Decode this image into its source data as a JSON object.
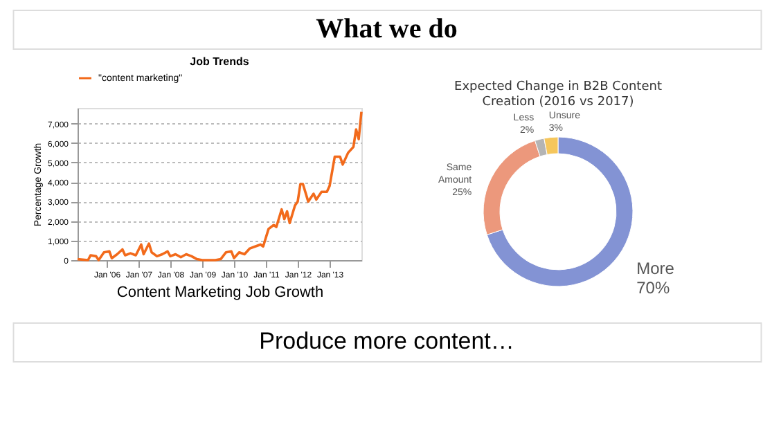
{
  "chart_data": [
    {
      "type": "line",
      "title": "Job Trends",
      "xlabel": "Content Marketing Job Growth",
      "ylabel": "Percentage Growth",
      "series": [
        {
          "name": "\"content marketing\"",
          "color": "#f26a1b",
          "x": [
            "2005-02",
            "2005-06",
            "2005-07",
            "2005-09",
            "2005-10",
            "2005-12",
            "2006-02",
            "2006-03",
            "2006-05",
            "2006-07",
            "2006-08",
            "2006-10",
            "2006-12",
            "2007-02",
            "2007-03",
            "2007-05",
            "2007-06",
            "2007-08",
            "2007-10",
            "2007-12",
            "2008-01",
            "2008-03",
            "2008-05",
            "2008-07",
            "2008-09",
            "2008-11",
            "2009-01",
            "2009-04",
            "2009-06",
            "2009-08",
            "2009-10",
            "2009-12",
            "2010-01",
            "2010-03",
            "2010-05",
            "2010-07",
            "2010-09",
            "2010-11",
            "2010-12",
            "2011-02",
            "2011-04",
            "2011-05",
            "2011-07",
            "2011-08",
            "2011-09",
            "2011-10",
            "2011-12",
            "2012-01",
            "2012-02",
            "2012-03",
            "2012-05",
            "2012-07",
            "2012-08",
            "2012-10",
            "2012-12",
            "2013-01",
            "2013-03",
            "2013-05",
            "2013-06",
            "2013-08",
            "2013-10",
            "2013-11",
            "2013-12",
            "2014-01"
          ],
          "values": [
            50,
            0,
            250,
            200,
            0,
            400,
            450,
            100,
            300,
            550,
            250,
            350,
            250,
            800,
            300,
            850,
            400,
            200,
            300,
            450,
            200,
            300,
            150,
            300,
            200,
            50,
            0,
            0,
            0,
            50,
            400,
            450,
            100,
            400,
            300,
            600,
            700,
            800,
            700,
            1600,
            1800,
            1700,
            2600,
            2100,
            2500,
            1900,
            2800,
            3000,
            3900,
            3900,
            3000,
            3400,
            3100,
            3500,
            3500,
            3800,
            5300,
            5300,
            4900,
            5500,
            5800,
            6700,
            6200,
            7600
          ]
        }
      ],
      "xlim": [
        "2005-02",
        "2014-01"
      ],
      "xticks": [
        {
          "value": "2006-01",
          "label": "Jan '06"
        },
        {
          "value": "2007-01",
          "label": "Jan '07"
        },
        {
          "value": "2008-01",
          "label": "Jan '08"
        },
        {
          "value": "2009-01",
          "label": "Jan '09"
        },
        {
          "value": "2010-01",
          "label": "Jan '10"
        },
        {
          "value": "2011-01",
          "label": "Jan '11"
        },
        {
          "value": "2012-01",
          "label": "Jan '12"
        },
        {
          "value": "2013-01",
          "label": "Jan '13"
        }
      ],
      "ylim": [
        0,
        7800
      ],
      "yticks": [
        {
          "value": 0,
          "label": "0"
        },
        {
          "value": 1000,
          "label": "1,000"
        },
        {
          "value": 2000,
          "label": "2,000"
        },
        {
          "value": 3000,
          "label": "3,000"
        },
        {
          "value": 4000,
          "label": "4,000"
        },
        {
          "value": 5000,
          "label": "5,000"
        },
        {
          "value": 6000,
          "label": "6,000"
        },
        {
          "value": 7000,
          "label": "7,000"
        }
      ],
      "grid": "y",
      "legend": "top",
      "marker": "none",
      "line_style": "solid"
    },
    {
      "type": "donut",
      "title": "Expected Change in B2B Content Creation (2016 vs 2017)",
      "categories": [
        "More",
        "Same Amount",
        "Less",
        "Unsure"
      ],
      "values": [
        70,
        25,
        2,
        3
      ],
      "colors": [
        "#8393d4",
        "#ec987c",
        "#b4b4b4",
        "#f5c65c"
      ],
      "value_labels": [
        "70%",
        "25%",
        "2%",
        "3%"
      ]
    },
    {
      "type": "other",
      "title": "What we do",
      "annotations": [
        "Produce more content…"
      ]
    }
  ]
}
